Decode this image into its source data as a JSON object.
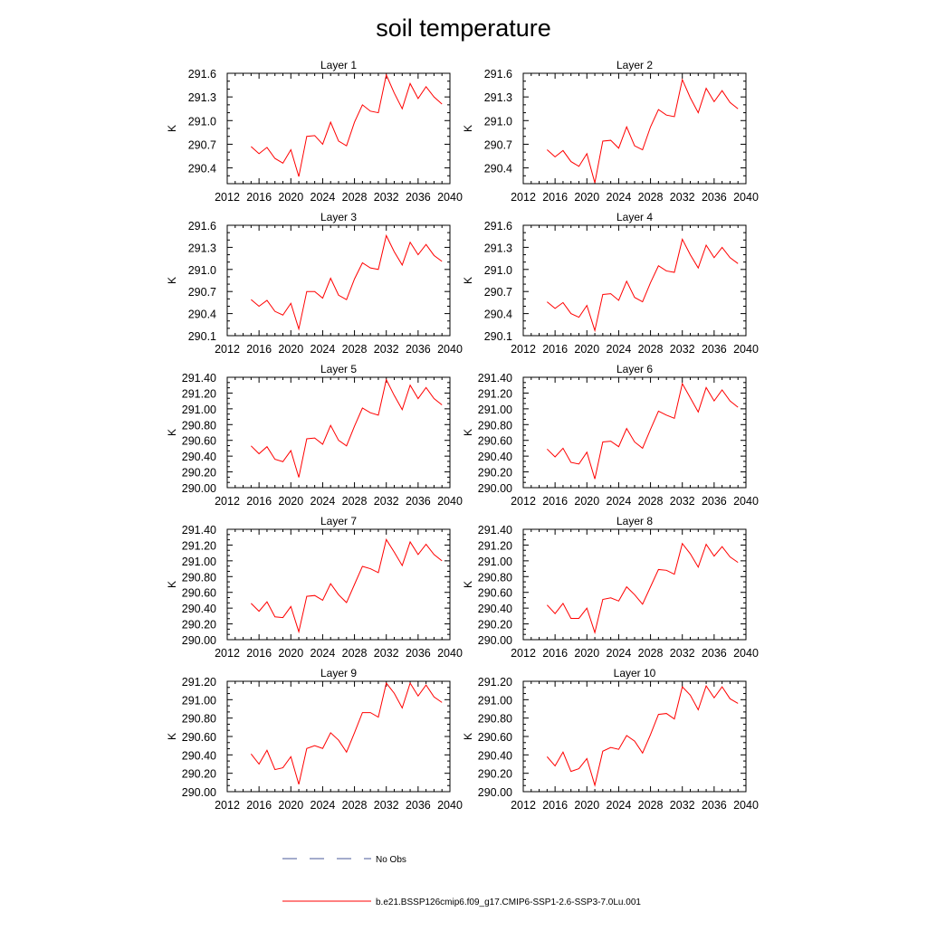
{
  "chart_data": {
    "title": "soil temperature",
    "type": "line",
    "x": [
      2015,
      2016,
      2017,
      2018,
      2019,
      2020,
      2021,
      2022,
      2023,
      2024,
      2025,
      2026,
      2027,
      2028,
      2029,
      2030,
      2031,
      2032,
      2033,
      2034,
      2035,
      2036,
      2037,
      2038,
      2039
    ],
    "xlim": [
      2012,
      2040
    ],
    "xticks": [
      2012,
      2016,
      2020,
      2024,
      2028,
      2032,
      2036,
      2040
    ],
    "series_color": "#ff0000",
    "legend": [
      {
        "label": "No Obs",
        "style": "dashed",
        "color": "#4a5a9a"
      },
      {
        "label": "b.e21.BSSP126cmip6.f09_g17.CMIP6-SSP1-2.6-SSP3-7.0Lu.001",
        "style": "solid",
        "color": "#ff0000"
      }
    ],
    "panels": [
      {
        "title": "Layer 1",
        "ylabel": "K",
        "ylim": [
          290.2,
          291.6
        ],
        "yticks": [
          "290.4",
          "290.7",
          "291.0",
          "291.3",
          "291.6"
        ],
        "values": [
          290.67,
          290.58,
          290.66,
          290.52,
          290.46,
          290.63,
          290.29,
          290.8,
          290.81,
          290.7,
          290.98,
          290.74,
          290.68,
          290.98,
          291.2,
          291.12,
          291.1,
          291.58,
          291.35,
          291.15,
          291.47,
          291.28,
          291.43,
          291.3,
          291.21
        ]
      },
      {
        "title": "Layer 2",
        "ylabel": "K",
        "ylim": [
          290.2,
          291.6
        ],
        "yticks": [
          "290.4",
          "290.7",
          "291.0",
          "291.3",
          "291.6"
        ],
        "values": [
          290.63,
          290.54,
          290.62,
          290.48,
          290.42,
          290.58,
          290.21,
          290.74,
          290.75,
          290.65,
          290.92,
          290.68,
          290.63,
          290.92,
          291.14,
          291.07,
          291.05,
          291.52,
          291.29,
          291.1,
          291.41,
          291.24,
          291.38,
          291.23,
          291.15
        ]
      },
      {
        "title": "Layer 3",
        "ylabel": "K",
        "ylim": [
          290.1,
          291.6
        ],
        "yticks": [
          "290.1",
          "290.4",
          "290.7",
          "291.0",
          "291.3",
          "291.6"
        ],
        "values": [
          290.59,
          290.5,
          290.58,
          290.43,
          290.38,
          290.54,
          290.19,
          290.7,
          290.7,
          290.61,
          290.88,
          290.65,
          290.59,
          290.87,
          291.09,
          291.02,
          291.0,
          291.46,
          291.24,
          291.06,
          291.37,
          291.2,
          291.34,
          291.19,
          291.11
        ]
      },
      {
        "title": "Layer 4",
        "ylabel": "K",
        "ylim": [
          290.1,
          291.6
        ],
        "yticks": [
          "290.1",
          "290.4",
          "290.7",
          "291.0",
          "291.3",
          "291.6"
        ],
        "values": [
          290.56,
          290.47,
          290.55,
          290.4,
          290.35,
          290.51,
          290.17,
          290.66,
          290.67,
          290.58,
          290.84,
          290.62,
          290.56,
          290.82,
          291.05,
          290.98,
          290.96,
          291.41,
          291.2,
          291.02,
          291.33,
          291.16,
          291.3,
          291.16,
          291.08
        ]
      },
      {
        "title": "Layer 5",
        "ylabel": "K",
        "ylim": [
          290.0,
          291.4
        ],
        "yticks": [
          "290.00",
          "290.20",
          "290.40",
          "290.60",
          "290.80",
          "291.00",
          "291.20",
          "291.40"
        ],
        "values": [
          290.53,
          290.43,
          290.52,
          290.36,
          290.33,
          290.47,
          290.13,
          290.62,
          290.63,
          290.55,
          290.79,
          290.6,
          290.53,
          290.78,
          291.01,
          290.95,
          290.92,
          291.37,
          291.17,
          290.99,
          291.3,
          291.13,
          291.27,
          291.13,
          291.05
        ]
      },
      {
        "title": "Layer 6",
        "ylabel": "K",
        "ylim": [
          290.0,
          291.4
        ],
        "yticks": [
          "290.00",
          "290.20",
          "290.40",
          "290.60",
          "290.80",
          "291.00",
          "291.20",
          "291.40"
        ],
        "values": [
          290.49,
          290.39,
          290.5,
          290.32,
          290.3,
          290.45,
          290.11,
          290.58,
          290.59,
          290.52,
          290.75,
          290.58,
          290.5,
          290.74,
          290.97,
          290.92,
          290.88,
          291.32,
          291.14,
          290.96,
          291.27,
          291.1,
          291.24,
          291.1,
          291.02
        ]
      },
      {
        "title": "Layer 7",
        "ylabel": "K",
        "ylim": [
          290.0,
          291.4
        ],
        "yticks": [
          "290.00",
          "290.20",
          "290.40",
          "290.60",
          "290.80",
          "291.00",
          "291.20",
          "291.40"
        ],
        "values": [
          290.46,
          290.36,
          290.48,
          290.29,
          290.28,
          290.42,
          290.1,
          290.55,
          290.56,
          290.5,
          290.71,
          290.57,
          290.47,
          290.7,
          290.93,
          290.9,
          290.85,
          291.27,
          291.11,
          290.94,
          291.24,
          291.08,
          291.21,
          291.08,
          291.0
        ]
      },
      {
        "title": "Layer 8",
        "ylabel": "K",
        "ylim": [
          290.0,
          291.4
        ],
        "yticks": [
          "290.00",
          "290.20",
          "290.40",
          "290.60",
          "290.80",
          "291.00",
          "291.20",
          "291.40"
        ],
        "values": [
          290.44,
          290.33,
          290.46,
          290.27,
          290.27,
          290.4,
          290.09,
          290.51,
          290.53,
          290.49,
          290.67,
          290.57,
          290.45,
          290.67,
          290.89,
          290.88,
          290.83,
          291.22,
          291.09,
          290.92,
          291.21,
          291.06,
          291.18,
          291.05,
          290.98
        ]
      },
      {
        "title": "Layer 9",
        "ylabel": "K",
        "ylim": [
          290.0,
          291.2
        ],
        "yticks": [
          "290.00",
          "290.20",
          "290.40",
          "290.60",
          "290.80",
          "291.00",
          "291.20"
        ],
        "values": [
          290.41,
          290.3,
          290.45,
          290.24,
          290.26,
          290.38,
          290.08,
          290.47,
          290.5,
          290.47,
          290.64,
          290.56,
          290.43,
          290.64,
          290.86,
          290.86,
          290.81,
          291.18,
          291.07,
          290.91,
          291.18,
          291.04,
          291.16,
          291.03,
          290.97
        ]
      },
      {
        "title": "Layer 10",
        "ylabel": "K",
        "ylim": [
          290.0,
          291.2
        ],
        "yticks": [
          "290.00",
          "290.20",
          "290.40",
          "290.60",
          "290.80",
          "291.00",
          "291.20"
        ],
        "values": [
          290.38,
          290.28,
          290.43,
          290.22,
          290.25,
          290.36,
          290.07,
          290.44,
          290.48,
          290.46,
          290.61,
          290.55,
          290.42,
          290.62,
          290.84,
          290.85,
          290.79,
          291.14,
          291.05,
          290.89,
          291.15,
          291.02,
          291.14,
          291.01,
          290.96
        ]
      }
    ]
  }
}
